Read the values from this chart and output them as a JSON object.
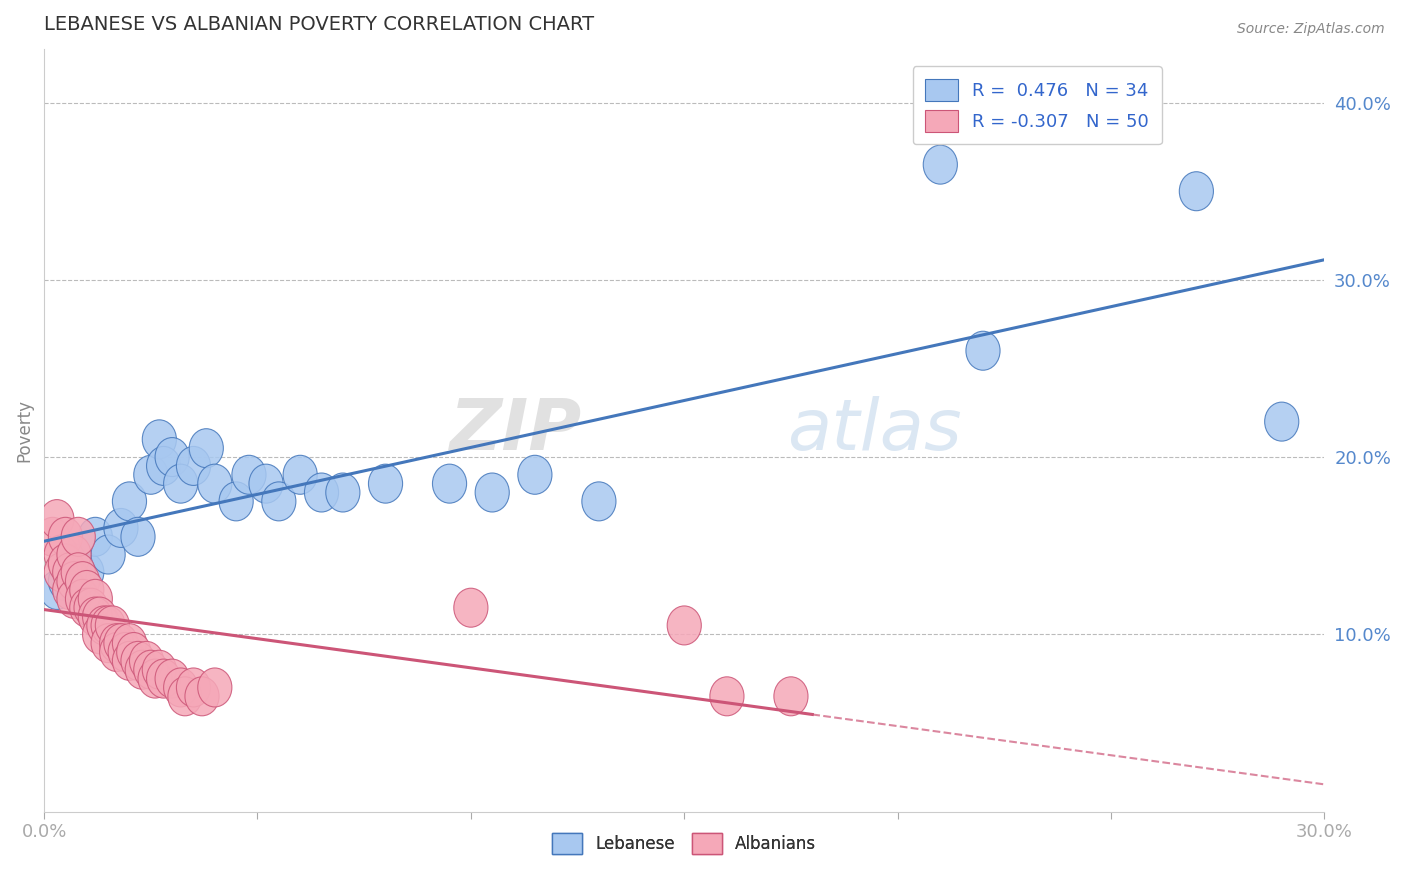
{
  "title": "LEBANESE VS ALBANIAN POVERTY CORRELATION CHART",
  "source_text": "Source: ZipAtlas.com",
  "ylabel": "Poverty",
  "y_ticks": [
    0.1,
    0.2,
    0.3,
    0.4
  ],
  "y_tick_labels": [
    "10.0%",
    "20.0%",
    "30.0%",
    "40.0%"
  ],
  "xlim": [
    0.0,
    0.3
  ],
  "ylim": [
    0.0,
    0.43
  ],
  "legend_r_lebanese": "0.476",
  "legend_n_lebanese": "34",
  "legend_r_albanians": "-0.307",
  "legend_n_albanians": "50",
  "color_lebanese": "#a8c8f0",
  "color_albanian": "#f5a8b8",
  "color_line_lebanese": "#4477bb",
  "color_line_albanian": "#cc5577",
  "watermark_zip": "ZIP",
  "watermark_atlas": "atlas",
  "lebanese_scatter": [
    [
      0.003,
      0.125
    ],
    [
      0.005,
      0.13
    ],
    [
      0.007,
      0.14
    ],
    [
      0.008,
      0.125
    ],
    [
      0.01,
      0.135
    ],
    [
      0.012,
      0.155
    ],
    [
      0.015,
      0.145
    ],
    [
      0.018,
      0.16
    ],
    [
      0.02,
      0.175
    ],
    [
      0.022,
      0.155
    ],
    [
      0.025,
      0.19
    ],
    [
      0.027,
      0.21
    ],
    [
      0.028,
      0.195
    ],
    [
      0.03,
      0.2
    ],
    [
      0.032,
      0.185
    ],
    [
      0.035,
      0.195
    ],
    [
      0.038,
      0.205
    ],
    [
      0.04,
      0.185
    ],
    [
      0.045,
      0.175
    ],
    [
      0.048,
      0.19
    ],
    [
      0.052,
      0.185
    ],
    [
      0.055,
      0.175
    ],
    [
      0.06,
      0.19
    ],
    [
      0.065,
      0.18
    ],
    [
      0.07,
      0.18
    ],
    [
      0.08,
      0.185
    ],
    [
      0.095,
      0.185
    ],
    [
      0.105,
      0.18
    ],
    [
      0.115,
      0.19
    ],
    [
      0.13,
      0.175
    ],
    [
      0.21,
      0.365
    ],
    [
      0.22,
      0.26
    ],
    [
      0.27,
      0.35
    ],
    [
      0.29,
      0.22
    ]
  ],
  "albanian_scatter": [
    [
      0.002,
      0.155
    ],
    [
      0.003,
      0.165
    ],
    [
      0.004,
      0.145
    ],
    [
      0.004,
      0.135
    ],
    [
      0.005,
      0.155
    ],
    [
      0.005,
      0.14
    ],
    [
      0.006,
      0.135
    ],
    [
      0.006,
      0.125
    ],
    [
      0.007,
      0.145
    ],
    [
      0.007,
      0.13
    ],
    [
      0.007,
      0.12
    ],
    [
      0.008,
      0.155
    ],
    [
      0.008,
      0.135
    ],
    [
      0.009,
      0.13
    ],
    [
      0.009,
      0.12
    ],
    [
      0.01,
      0.125
    ],
    [
      0.01,
      0.115
    ],
    [
      0.011,
      0.115
    ],
    [
      0.012,
      0.12
    ],
    [
      0.012,
      0.11
    ],
    [
      0.013,
      0.11
    ],
    [
      0.013,
      0.1
    ],
    [
      0.014,
      0.105
    ],
    [
      0.015,
      0.105
    ],
    [
      0.015,
      0.095
    ],
    [
      0.016,
      0.105
    ],
    [
      0.017,
      0.095
    ],
    [
      0.017,
      0.09
    ],
    [
      0.018,
      0.095
    ],
    [
      0.019,
      0.09
    ],
    [
      0.02,
      0.095
    ],
    [
      0.02,
      0.085
    ],
    [
      0.021,
      0.09
    ],
    [
      0.022,
      0.085
    ],
    [
      0.023,
      0.08
    ],
    [
      0.024,
      0.085
    ],
    [
      0.025,
      0.08
    ],
    [
      0.026,
      0.075
    ],
    [
      0.027,
      0.08
    ],
    [
      0.028,
      0.075
    ],
    [
      0.03,
      0.075
    ],
    [
      0.032,
      0.07
    ],
    [
      0.033,
      0.065
    ],
    [
      0.035,
      0.07
    ],
    [
      0.037,
      0.065
    ],
    [
      0.04,
      0.07
    ],
    [
      0.1,
      0.115
    ],
    [
      0.15,
      0.105
    ],
    [
      0.16,
      0.065
    ],
    [
      0.175,
      0.065
    ]
  ],
  "background_color": "#ffffff",
  "grid_color": "#bbbbbb"
}
